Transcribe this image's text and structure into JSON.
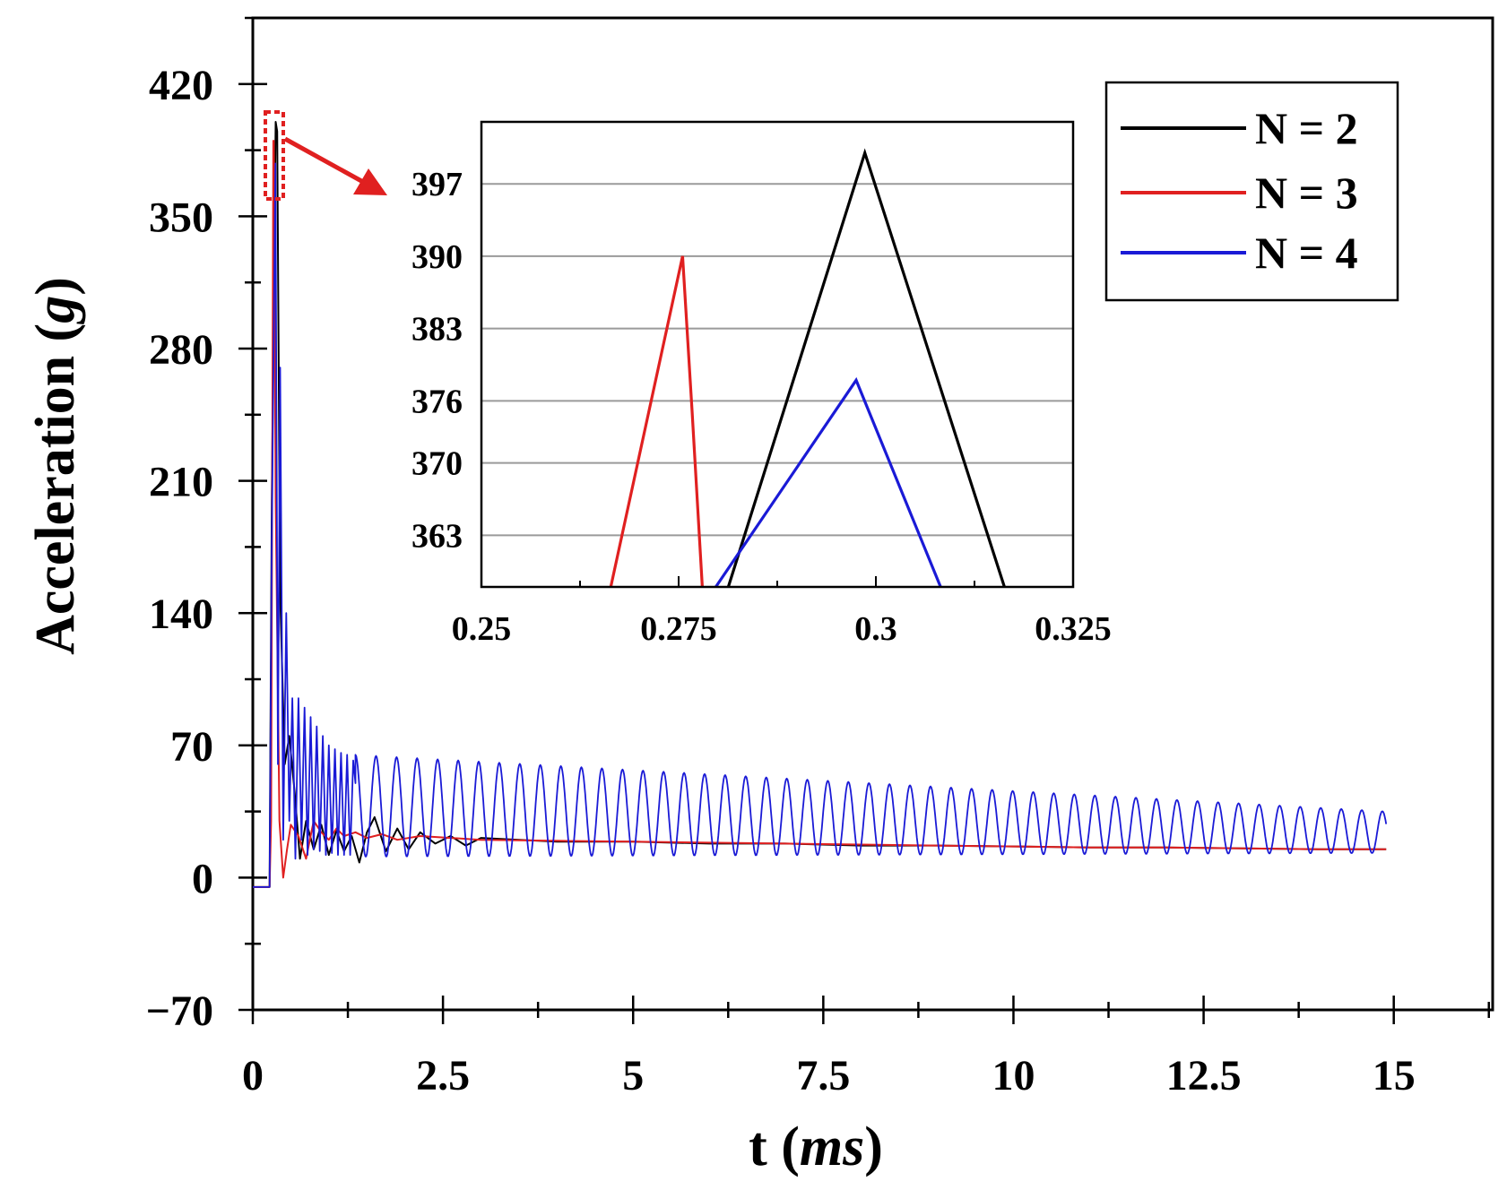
{
  "chart_data": {
    "type": "line",
    "xlabel": "t",
    "xlabel_unit": "ms",
    "ylabel": "Acceleration",
    "ylabel_unit": "g",
    "xlim": [
      0,
      16.3
    ],
    "ylim": [
      -70,
      455
    ],
    "xticks": [
      0,
      2.5,
      5,
      7.5,
      10,
      12.5,
      15
    ],
    "xtick_labels": [
      "0",
      "2.5",
      "5",
      "7.5",
      "10",
      "12.5",
      "15"
    ],
    "yticks": [
      -70,
      0,
      70,
      140,
      210,
      280,
      350,
      420
    ],
    "ytick_labels": [
      "−70",
      "0",
      "70",
      "140",
      "210",
      "280",
      "350",
      "420"
    ],
    "legend_position": "top-right",
    "series": [
      {
        "name": "N = 2",
        "color": "#000000",
        "x": [
          0,
          0.22,
          0.25,
          0.3,
          0.32,
          0.36,
          0.42,
          0.48,
          0.55,
          0.62,
          0.7,
          0.8,
          0.9,
          1.0,
          1.1,
          1.2,
          1.3,
          1.4,
          1.5,
          1.6,
          1.75,
          1.9,
          2.05,
          2.2,
          2.4,
          2.6,
          2.8,
          3.0,
          3.5,
          4.0,
          5.0,
          6.0,
          7.0,
          8.0,
          9.0,
          10.0,
          11.0,
          12.0,
          13.0,
          14.0,
          14.9
        ],
        "y": [
          -5,
          -5,
          200,
          400,
          395,
          150,
          60,
          75,
          45,
          10,
          30,
          15,
          28,
          12,
          25,
          14,
          22,
          8,
          24,
          32,
          14,
          26,
          15,
          24,
          18,
          22,
          17,
          21,
          20,
          19,
          19,
          18,
          18,
          17,
          17,
          16.5,
          16,
          16,
          15.5,
          15,
          15
        ]
      },
      {
        "name": "N = 3",
        "color": "#e02020",
        "x": [
          0,
          0.22,
          0.24,
          0.27,
          0.276,
          0.3,
          0.35,
          0.4,
          0.45,
          0.5,
          0.6,
          0.7,
          0.8,
          0.9,
          1.0,
          1.1,
          1.2,
          1.35,
          1.5,
          1.7,
          1.9,
          2.2,
          2.6,
          3.0,
          4.0,
          5.0,
          6.0,
          7.0,
          8.0,
          9.0,
          10.0,
          11.0,
          12.0,
          13.0,
          14.0,
          14.9
        ],
        "y": [
          -5,
          -5,
          30,
          390,
          390,
          200,
          30,
          0,
          15,
          28,
          22,
          10,
          30,
          24,
          20,
          26,
          22,
          24,
          21,
          23,
          20,
          22,
          21,
          20,
          19.5,
          19,
          18.5,
          18,
          17.5,
          17,
          16.5,
          16,
          16,
          15.5,
          15,
          15
        ]
      },
      {
        "name": "N = 4",
        "color": "#1a1ad6",
        "oscillation": {
          "start_x": 1.35,
          "end_x": 14.9,
          "period": 0.27,
          "mean_start": 38,
          "mean_end": 24,
          "amplitude_start": 27,
          "amplitude_end": 11
        },
        "x": [
          0,
          0.22,
          0.25,
          0.297,
          0.33,
          0.36,
          0.4,
          0.44,
          0.48,
          0.52,
          0.56,
          0.6,
          0.64,
          0.68,
          0.72,
          0.76,
          0.8,
          0.84,
          0.88,
          0.92,
          0.96,
          1.0,
          1.04,
          1.08,
          1.12,
          1.16,
          1.2,
          1.24,
          1.28,
          1.32,
          1.35
        ],
        "y": [
          -5,
          -5,
          180,
          378,
          60,
          270,
          20,
          140,
          30,
          95,
          10,
          95,
          20,
          90,
          12,
          85,
          15,
          80,
          14,
          75,
          12,
          70,
          13,
          68,
          12,
          66,
          12,
          65,
          12,
          62,
          50
        ]
      }
    ],
    "inset": {
      "xlim": [
        0.25,
        0.325
      ],
      "ylim": [
        358,
        403
      ],
      "xticks": [
        0.25,
        0.275,
        0.3,
        0.325
      ],
      "xtick_labels": [
        "0.25",
        "0.275",
        "0.3",
        "0.325"
      ],
      "yticks": [
        363,
        370,
        376,
        383,
        390,
        397
      ],
      "ytick_labels": [
        "363",
        "370",
        "376",
        "383",
        "390",
        "397"
      ],
      "grid": "horizontal",
      "series": [
        {
          "name": "N = 2",
          "color": "#000000",
          "x": [
            0.2813,
            0.2986,
            0.3163
          ],
          "y": [
            358,
            400,
            358
          ]
        },
        {
          "name": "N = 3",
          "color": "#e02020",
          "x": [
            0.2664,
            0.2755,
            0.2767,
            0.278
          ],
          "y": [
            358,
            390,
            375,
            358
          ]
        },
        {
          "name": "N = 4",
          "color": "#1a1ad6",
          "x": [
            0.2797,
            0.2975,
            0.3082
          ],
          "y": [
            358,
            378,
            358
          ]
        }
      ]
    }
  }
}
